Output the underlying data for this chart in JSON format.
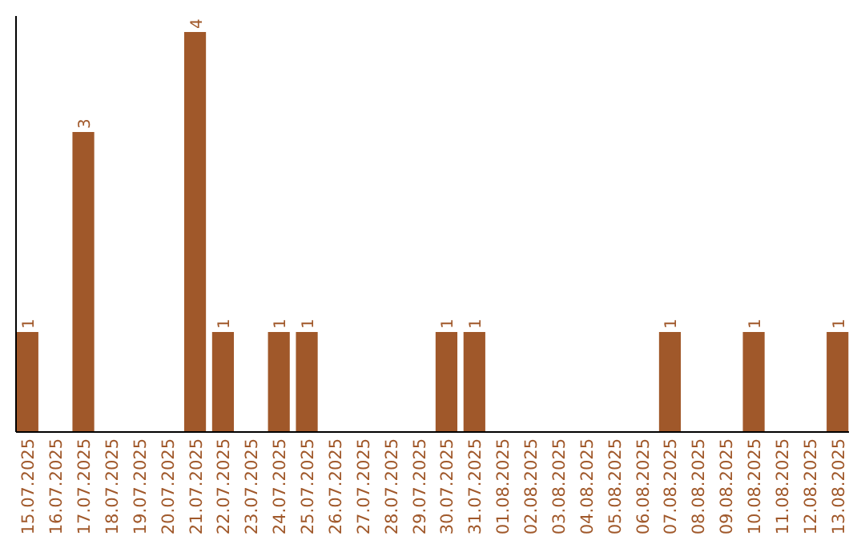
{
  "chart_data": {
    "type": "bar",
    "categories": [
      "15.07.2025",
      "16.07.2025",
      "17.07.2025",
      "18.07.2025",
      "19.07.2025",
      "20.07.2025",
      "21.07.2025",
      "22.07.2025",
      "23.07.2025",
      "24.07.2025",
      "25.07.2025",
      "26.07.2025",
      "27.07.2025",
      "28.07.2025",
      "29.07.2025",
      "30.07.2025",
      "31.07.2025",
      "01.08.2025",
      "02.08.2025",
      "03.08.2025",
      "04.08.2025",
      "05.08.2025",
      "06.08.2025",
      "07.08.2025",
      "08.08.2025",
      "09.08.2025",
      "10.08.2025",
      "11.08.2025",
      "12.08.2025",
      "13.08.2025"
    ],
    "values": [
      1,
      0,
      3,
      0,
      0,
      0,
      4,
      1,
      0,
      1,
      1,
      0,
      0,
      0,
      0,
      1,
      1,
      0,
      0,
      0,
      0,
      0,
      0,
      1,
      0,
      0,
      1,
      0,
      0,
      1
    ],
    "value_labels": [
      "1",
      null,
      "3",
      null,
      null,
      null,
      "4",
      "1",
      null,
      "1",
      "1",
      null,
      null,
      null,
      null,
      "1",
      "1",
      null,
      null,
      null,
      null,
      null,
      null,
      "1",
      null,
      null,
      "1",
      null,
      null,
      "1"
    ],
    "color": "#a0582a"
  }
}
